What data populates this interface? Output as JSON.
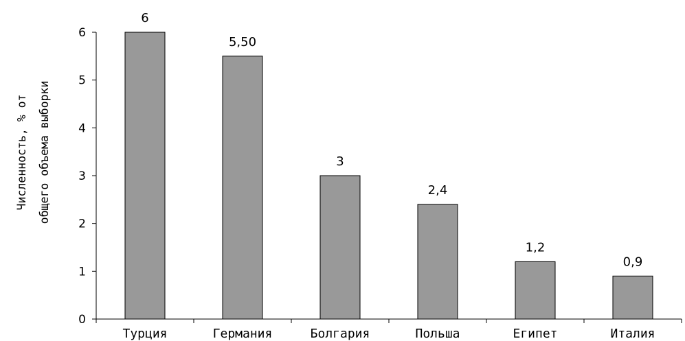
{
  "chart_data": {
    "type": "bar",
    "categories": [
      "Турция",
      "Германия",
      "Болгария",
      "Польша",
      "Египет",
      "Италия"
    ],
    "values": [
      6,
      5.5,
      3,
      2.4,
      1.2,
      0.9
    ],
    "value_labels": [
      "6",
      "5,50",
      "3",
      "2,4",
      "1,2",
      "0,9"
    ],
    "title": "",
    "xlabel": "",
    "ylabel_lines": [
      "Численность, % от",
      "общего  объема  выборки"
    ],
    "ylim": [
      0,
      6
    ],
    "yticks": [
      0,
      1,
      2,
      3,
      4,
      5,
      6
    ],
    "grid": false,
    "legend": "none",
    "bar_color": "#999999",
    "bar_edge_color": "#000000"
  }
}
